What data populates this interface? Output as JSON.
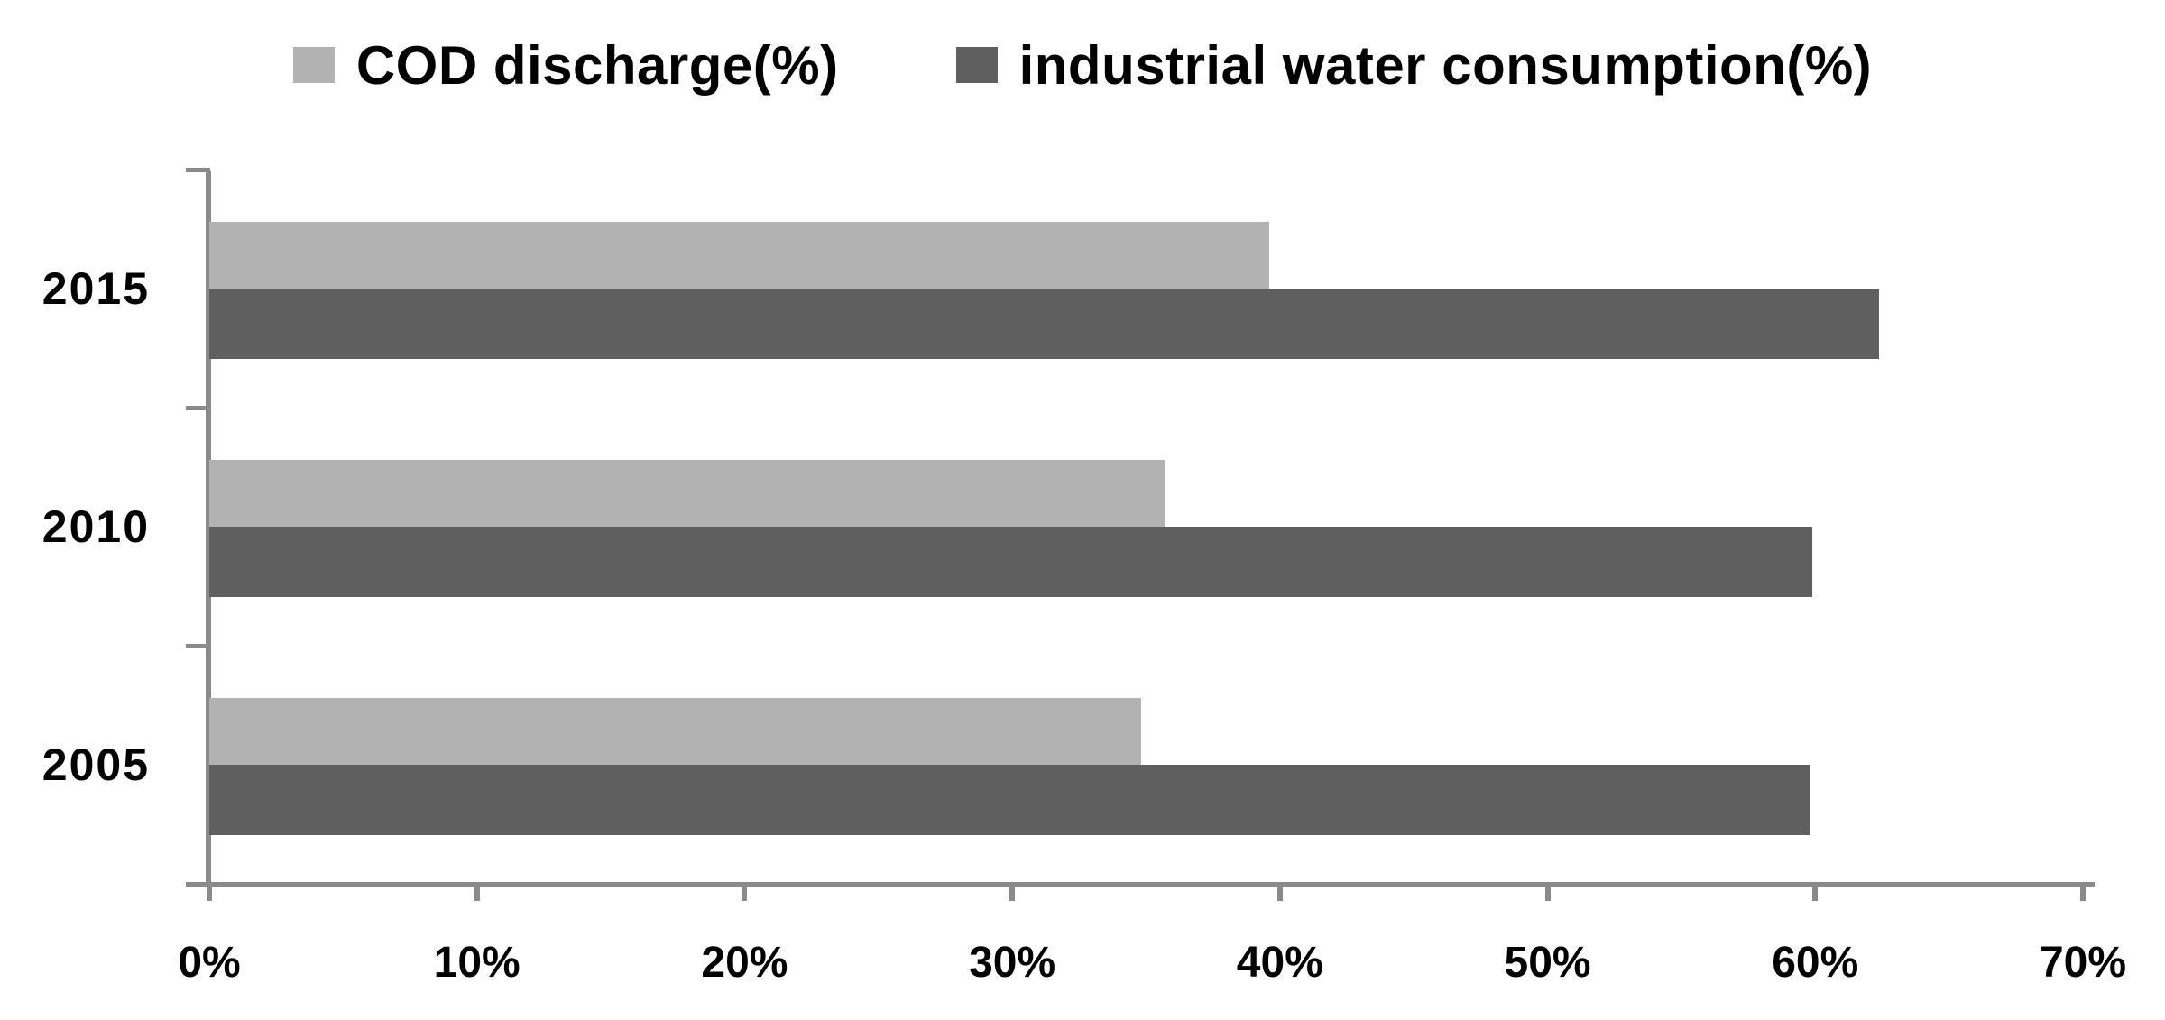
{
  "chart_data": {
    "type": "bar",
    "orientation": "horizontal",
    "title": "",
    "xlabel": "",
    "ylabel": "",
    "categories_top_to_bottom": [
      "2015",
      "2010",
      "2005"
    ],
    "series": [
      {
        "id": "cod",
        "name": "COD discharge(%)",
        "color": "#b2b2b2",
        "values": [
          39.6,
          35.7,
          34.8
        ]
      },
      {
        "id": "industrial",
        "name": "industrial water consumption(%)",
        "color": "#5f5f5f",
        "values": [
          62.4,
          59.9,
          59.8
        ]
      }
    ],
    "x_axis": {
      "min": 0,
      "max": 70,
      "tick_step": 10,
      "tick_labels": [
        "0%",
        "10%",
        "20%",
        "30%",
        "40%",
        "50%",
        "60%",
        "70%"
      ]
    },
    "legend_position": "top",
    "grid": false,
    "axis_color": "#8a8a8a",
    "text_color": "#000000",
    "background_color": "#ffffff"
  }
}
